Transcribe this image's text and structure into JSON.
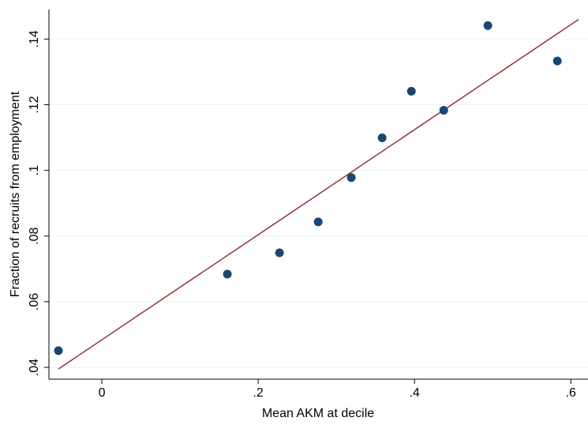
{
  "chart_data": {
    "type": "scatter",
    "xlabel": "Mean AKM at decile",
    "ylabel": "Fraction of recruits from employment",
    "x": [
      -0.0556,
      0.1606,
      0.2273,
      0.2768,
      0.3192,
      0.3586,
      0.396,
      0.4374,
      0.4939,
      0.5828
    ],
    "values": [
      0.0451,
      0.0684,
      0.0749,
      0.0843,
      0.0978,
      0.1099,
      0.1241,
      0.1183,
      0.1441,
      0.1333
    ],
    "color": "#1a476f",
    "fit_line": {
      "x": [
        -0.0556,
        0.6101
      ],
      "values": [
        0.0395,
        0.146
      ],
      "color": "#90353b"
    },
    "xlim": [
      -0.0677,
      0.622
    ],
    "ylim": [
      0.0364,
      0.149
    ],
    "xticks": [
      0,
      {
        "value": 0.2,
        "label": ".2"
      },
      {
        "value": 0.4,
        "label": ".4"
      },
      {
        "value": 0.6,
        "label": ".6"
      }
    ],
    "yticks": [
      {
        "value": 0.04,
        "label": ".04"
      },
      {
        "value": 0.06,
        "label": ".06"
      },
      {
        "value": 0.08,
        "label": ".08"
      },
      {
        "value": 0.1,
        "label": ".1"
      },
      {
        "value": 0.12,
        "label": ".12"
      },
      {
        "value": 0.14,
        "label": ".14"
      }
    ],
    "grid": true
  }
}
